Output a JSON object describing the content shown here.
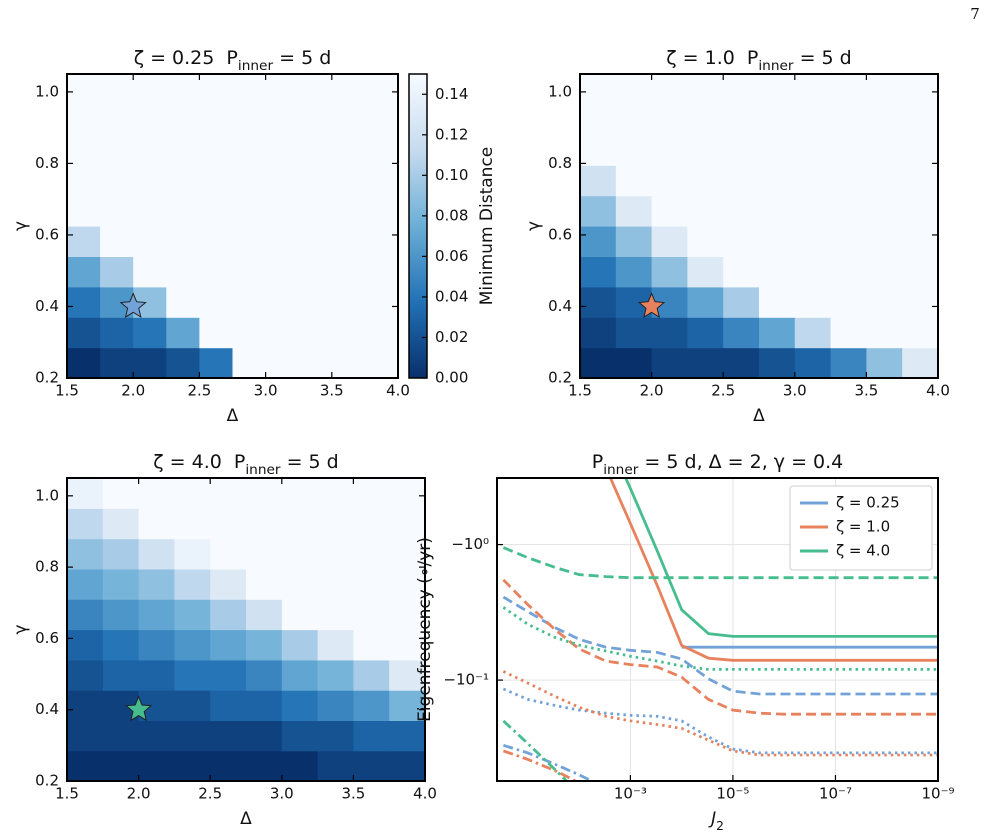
{
  "page_number": "7",
  "chart_data": [
    {
      "type": "heatmap",
      "title": [
        "ζ = 0.25  P",
        "inner",
        " = 5 d"
      ],
      "x_label": "Δ",
      "y_label": "γ",
      "x_bins": [
        1.5,
        1.75,
        2.0,
        2.25,
        2.5,
        2.75,
        3.0,
        3.25,
        3.5,
        3.75,
        4.0
      ],
      "y_bins": [
        0.2,
        0.285,
        0.37,
        0.455,
        0.54,
        0.625,
        0.71,
        0.795,
        0.88,
        0.965,
        1.05
      ],
      "z": [
        [
          0.0,
          0.01,
          0.01,
          0.02,
          0.04,
          0.15,
          0.15,
          0.15,
          0.15,
          0.15
        ],
        [
          0.02,
          0.03,
          0.04,
          0.07,
          0.15,
          0.15,
          0.15,
          0.15,
          0.15,
          0.15
        ],
        [
          0.04,
          0.06,
          0.09,
          0.15,
          0.15,
          0.15,
          0.15,
          0.15,
          0.15,
          0.15
        ],
        [
          0.07,
          0.1,
          0.15,
          0.15,
          0.15,
          0.15,
          0.15,
          0.15,
          0.15,
          0.15
        ],
        [
          0.11,
          0.15,
          0.15,
          0.15,
          0.15,
          0.15,
          0.15,
          0.15,
          0.15,
          0.15
        ],
        [
          0.15,
          0.15,
          0.15,
          0.15,
          0.15,
          0.15,
          0.15,
          0.15,
          0.15,
          0.15
        ],
        [
          0.15,
          0.15,
          0.15,
          0.15,
          0.15,
          0.15,
          0.15,
          0.15,
          0.15,
          0.15
        ],
        [
          0.15,
          0.15,
          0.15,
          0.15,
          0.15,
          0.15,
          0.15,
          0.15,
          0.15,
          0.15
        ],
        [
          0.15,
          0.15,
          0.15,
          0.15,
          0.15,
          0.15,
          0.15,
          0.15,
          0.15,
          0.15
        ],
        [
          0.15,
          0.15,
          0.15,
          0.15,
          0.15,
          0.15,
          0.15,
          0.15,
          0.15,
          0.15
        ]
      ],
      "xlim": [
        1.5,
        4.0
      ],
      "ylim": [
        0.2,
        1.05
      ],
      "xticks": [
        1.5,
        {
          "value": 2.0,
          "label": "2.0"
        },
        2.5,
        {
          "value": 3.0,
          "label": "3.0"
        },
        3.5,
        {
          "value": 4.0,
          "label": "4.0"
        }
      ],
      "yticks": [
        0.2,
        0.4,
        0.6,
        0.8,
        {
          "value": 1.0,
          "label": "1.0"
        }
      ],
      "clim": [
        0,
        0.15
      ],
      "cmap": [
        "#08306b",
        "#2171b5",
        "#6baed6",
        "#c6dbef",
        "#f7fbff"
      ],
      "marker": {
        "x": 2.0,
        "y": 0.4,
        "color": "#73a2d8"
      },
      "colorbar": {
        "label": "Minimum Distance",
        "ticks": [
          {
            "value": 0,
            "label": "0.00"
          },
          0.02,
          0.04,
          0.06,
          0.08,
          {
            "value": 0.1,
            "label": "0.10"
          },
          0.12,
          0.14
        ]
      }
    },
    {
      "type": "heatmap",
      "title": [
        "ζ = 1.0  P",
        "inner",
        " = 5 d"
      ],
      "x_label": "Δ",
      "y_label": "γ",
      "x_bins": [
        1.5,
        1.75,
        2.0,
        2.25,
        2.5,
        2.75,
        3.0,
        3.25,
        3.5,
        3.75,
        4.0
      ],
      "y_bins": [
        0.2,
        0.285,
        0.37,
        0.455,
        0.54,
        0.625,
        0.71,
        0.795,
        0.88,
        0.965,
        1.05
      ],
      "z": [
        [
          0.0,
          0.0,
          0.01,
          0.01,
          0.01,
          0.02,
          0.03,
          0.05,
          0.09,
          0.13
        ],
        [
          0.01,
          0.02,
          0.02,
          0.03,
          0.05,
          0.07,
          0.11,
          0.15,
          0.15,
          0.15
        ],
        [
          0.02,
          0.03,
          0.05,
          0.07,
          0.1,
          0.15,
          0.15,
          0.15,
          0.15,
          0.15
        ],
        [
          0.04,
          0.06,
          0.09,
          0.13,
          0.15,
          0.15,
          0.15,
          0.15,
          0.15,
          0.15
        ],
        [
          0.06,
          0.09,
          0.13,
          0.15,
          0.15,
          0.15,
          0.15,
          0.15,
          0.15,
          0.15
        ],
        [
          0.09,
          0.13,
          0.15,
          0.15,
          0.15,
          0.15,
          0.15,
          0.15,
          0.15,
          0.15
        ],
        [
          0.12,
          0.15,
          0.15,
          0.15,
          0.15,
          0.15,
          0.15,
          0.15,
          0.15,
          0.15
        ],
        [
          0.15,
          0.15,
          0.15,
          0.15,
          0.15,
          0.15,
          0.15,
          0.15,
          0.15,
          0.15
        ],
        [
          0.15,
          0.15,
          0.15,
          0.15,
          0.15,
          0.15,
          0.15,
          0.15,
          0.15,
          0.15
        ],
        [
          0.15,
          0.15,
          0.15,
          0.15,
          0.15,
          0.15,
          0.15,
          0.15,
          0.15,
          0.15
        ]
      ],
      "xlim": [
        1.5,
        4.0
      ],
      "ylim": [
        0.2,
        1.05
      ],
      "xticks": [
        1.5,
        {
          "value": 2.0,
          "label": "2.0"
        },
        2.5,
        {
          "value": 3.0,
          "label": "3.0"
        },
        3.5,
        {
          "value": 4.0,
          "label": "4.0"
        }
      ],
      "yticks": [
        0.2,
        0.4,
        0.6,
        0.8,
        {
          "value": 1.0,
          "label": "1.0"
        }
      ],
      "clim": [
        0,
        0.15
      ],
      "cmap": [
        "#08306b",
        "#2171b5",
        "#6baed6",
        "#c6dbef",
        "#f7fbff"
      ],
      "marker": {
        "x": 2.0,
        "y": 0.4,
        "color": "#e8825e"
      }
    },
    {
      "type": "heatmap",
      "title": [
        "ζ = 4.0  P",
        "inner",
        " = 5 d"
      ],
      "x_label": "Δ",
      "y_label": "γ",
      "x_bins": [
        1.5,
        1.75,
        2.0,
        2.25,
        2.5,
        2.75,
        3.0,
        3.25,
        3.5,
        3.75,
        4.0
      ],
      "y_bins": [
        0.2,
        0.285,
        0.37,
        0.455,
        0.54,
        0.625,
        0.71,
        0.795,
        0.88,
        0.965,
        1.05
      ],
      "z": [
        [
          0.0,
          0.0,
          0.0,
          0.0,
          0.0,
          0.0,
          0.0,
          0.01,
          0.01,
          0.01
        ],
        [
          0.01,
          0.01,
          0.01,
          0.01,
          0.01,
          0.01,
          0.02,
          0.02,
          0.03,
          0.03
        ],
        [
          0.01,
          0.01,
          0.02,
          0.02,
          0.03,
          0.03,
          0.04,
          0.05,
          0.06,
          0.08
        ],
        [
          0.02,
          0.03,
          0.03,
          0.04,
          0.04,
          0.05,
          0.07,
          0.08,
          0.1,
          0.13
        ],
        [
          0.03,
          0.04,
          0.05,
          0.06,
          0.07,
          0.08,
          0.1,
          0.13,
          0.15,
          0.15
        ],
        [
          0.05,
          0.06,
          0.07,
          0.08,
          0.1,
          0.12,
          0.15,
          0.15,
          0.15,
          0.15
        ],
        [
          0.07,
          0.08,
          0.09,
          0.11,
          0.13,
          0.15,
          0.15,
          0.15,
          0.15,
          0.15
        ],
        [
          0.09,
          0.1,
          0.12,
          0.14,
          0.15,
          0.15,
          0.15,
          0.15,
          0.15,
          0.15
        ],
        [
          0.11,
          0.13,
          0.15,
          0.15,
          0.15,
          0.15,
          0.15,
          0.15,
          0.15,
          0.15
        ],
        [
          0.14,
          0.15,
          0.15,
          0.15,
          0.15,
          0.15,
          0.15,
          0.15,
          0.15,
          0.15
        ]
      ],
      "xlim": [
        1.5,
        4.0
      ],
      "ylim": [
        0.2,
        1.05
      ],
      "xticks": [
        1.5,
        {
          "value": 2.0,
          "label": "2.0"
        },
        2.5,
        {
          "value": 3.0,
          "label": "3.0"
        },
        3.5,
        {
          "value": 4.0,
          "label": "4.0"
        }
      ],
      "yticks": [
        0.2,
        0.4,
        0.6,
        0.8,
        {
          "value": 1.0,
          "label": "1.0"
        }
      ],
      "clim": [
        0,
        0.15
      ],
      "cmap": [
        "#08306b",
        "#2171b5",
        "#6baed6",
        "#c6dbef",
        "#f7fbff"
      ],
      "marker": {
        "x": 2.0,
        "y": 0.4,
        "color": "#45bd8e"
      }
    },
    {
      "type": "line",
      "title": [
        "P",
        "inner",
        " = 5 d, Δ = 2, γ = 0.4"
      ],
      "x_label": [
        "J",
        "2"
      ],
      "y_label": "Eigenfrequency (∘/yr)",
      "x": [
        0.3,
        0.1,
        0.03,
        0.01,
        0.003,
        0.001,
        0.0003,
        0.0001,
        3e-05,
        1e-05,
        3e-06,
        1e-06,
        1e-07,
        1e-08,
        1e-09
      ],
      "xscale": "log",
      "yscale": "log",
      "xlim": [
        0.4,
        1e-09
      ],
      "ylim": [
        -0.018,
        -3.1
      ],
      "xticks": [
        {
          "value": 0.001,
          "label": "10⁻³"
        },
        {
          "value": 1e-05,
          "label": "10⁻⁵"
        },
        {
          "value": 1e-07,
          "label": "10⁻⁷"
        },
        {
          "value": 1e-09,
          "label": "10⁻⁹"
        }
      ],
      "yticks": [
        {
          "value": -1,
          "label": "−10⁰"
        },
        {
          "value": -0.1,
          "label": "−10⁻¹"
        }
      ],
      "grid": true,
      "legend": "upper right",
      "series": [
        {
          "name": "ζ = 0.25",
          "color": "#73a2d8",
          "lines": [
            {
              "style": "solid",
              "values": [
                null,
                null,
                null,
                null,
                null,
                null,
                null,
                -0.175,
                -0.175,
                -0.175,
                -0.175,
                -0.175,
                -0.175,
                -0.175,
                -0.175
              ]
            },
            {
              "style": "dashed",
              "values": [
                -0.41,
                -0.32,
                -0.245,
                -0.2,
                -0.175,
                -0.166,
                -0.16,
                -0.143,
                -0.102,
                -0.083,
                -0.079,
                -0.079,
                -0.079,
                -0.079,
                -0.079
              ]
            },
            {
              "style": "dotted",
              "values": [
                -0.086,
                -0.072,
                -0.065,
                -0.06,
                -0.057,
                -0.055,
                -0.054,
                -0.05,
                -0.038,
                -0.031,
                -0.029,
                -0.029,
                -0.029,
                -0.029,
                -0.029
              ]
            },
            {
              "style": "dashdot",
              "values": [
                -0.033,
                -0.029,
                -0.024,
                -0.02,
                -0.016,
                -0.0127,
                null,
                null,
                null,
                null,
                null,
                null,
                null,
                null,
                null
              ]
            }
          ]
        },
        {
          "name": "ζ = 1.0",
          "color": "#e8825e",
          "lines": [
            {
              "style": "solid",
              "values": [
                -210,
                -80,
                -28,
                -10.7,
                -3.7,
                -1.43,
                -0.5,
                -0.18,
                -0.145,
                -0.14,
                -0.14,
                -0.14,
                -0.14,
                -0.14,
                -0.14
              ]
            },
            {
              "style": "dashed",
              "values": [
                -0.55,
                -0.36,
                -0.237,
                -0.17,
                -0.138,
                -0.13,
                -0.125,
                -0.105,
                -0.072,
                -0.06,
                -0.057,
                -0.056,
                -0.056,
                -0.056,
                -0.056
              ]
            },
            {
              "style": "dotted",
              "values": [
                -0.116,
                -0.095,
                -0.076,
                -0.063,
                -0.054,
                -0.05,
                -0.047,
                -0.044,
                -0.036,
                -0.03,
                -0.028,
                -0.028,
                -0.028,
                -0.028,
                -0.028
              ]
            },
            {
              "style": "dashdot",
              "values": [
                -0.03,
                -0.026,
                -0.0215,
                -0.0175,
                -0.0138,
                null,
                null,
                null,
                null,
                null,
                null,
                null,
                null,
                null,
                null
              ]
            }
          ]
        },
        {
          "name": "ζ = 4.0",
          "color": "#45bd8e",
          "lines": [
            {
              "style": "solid",
              "values": [
                -294,
                -119,
                -43.7,
                -17.6,
                -6.5,
                -2.6,
                -0.9,
                -0.33,
                -0.22,
                -0.21,
                -0.21,
                -0.21,
                -0.21,
                -0.21,
                -0.21
              ]
            },
            {
              "style": "dashed",
              "values": [
                -0.95,
                -0.8,
                -0.68,
                -0.6,
                -0.58,
                -0.57,
                -0.57,
                -0.57,
                -0.57,
                -0.57,
                -0.57,
                -0.57,
                -0.57,
                -0.57,
                -0.57
              ]
            },
            {
              "style": "dotted",
              "values": [
                -0.344,
                -0.258,
                -0.207,
                -0.181,
                -0.164,
                -0.15,
                -0.138,
                -0.127,
                -0.12,
                -0.12,
                -0.12,
                -0.12,
                -0.12,
                -0.12,
                -0.12
              ]
            },
            {
              "style": "dashdot",
              "values": [
                -0.05,
                -0.034,
                -0.022,
                -0.0146,
                null,
                null,
                null,
                null,
                null,
                null,
                null,
                null,
                null,
                null,
                null
              ]
            }
          ]
        }
      ]
    }
  ]
}
